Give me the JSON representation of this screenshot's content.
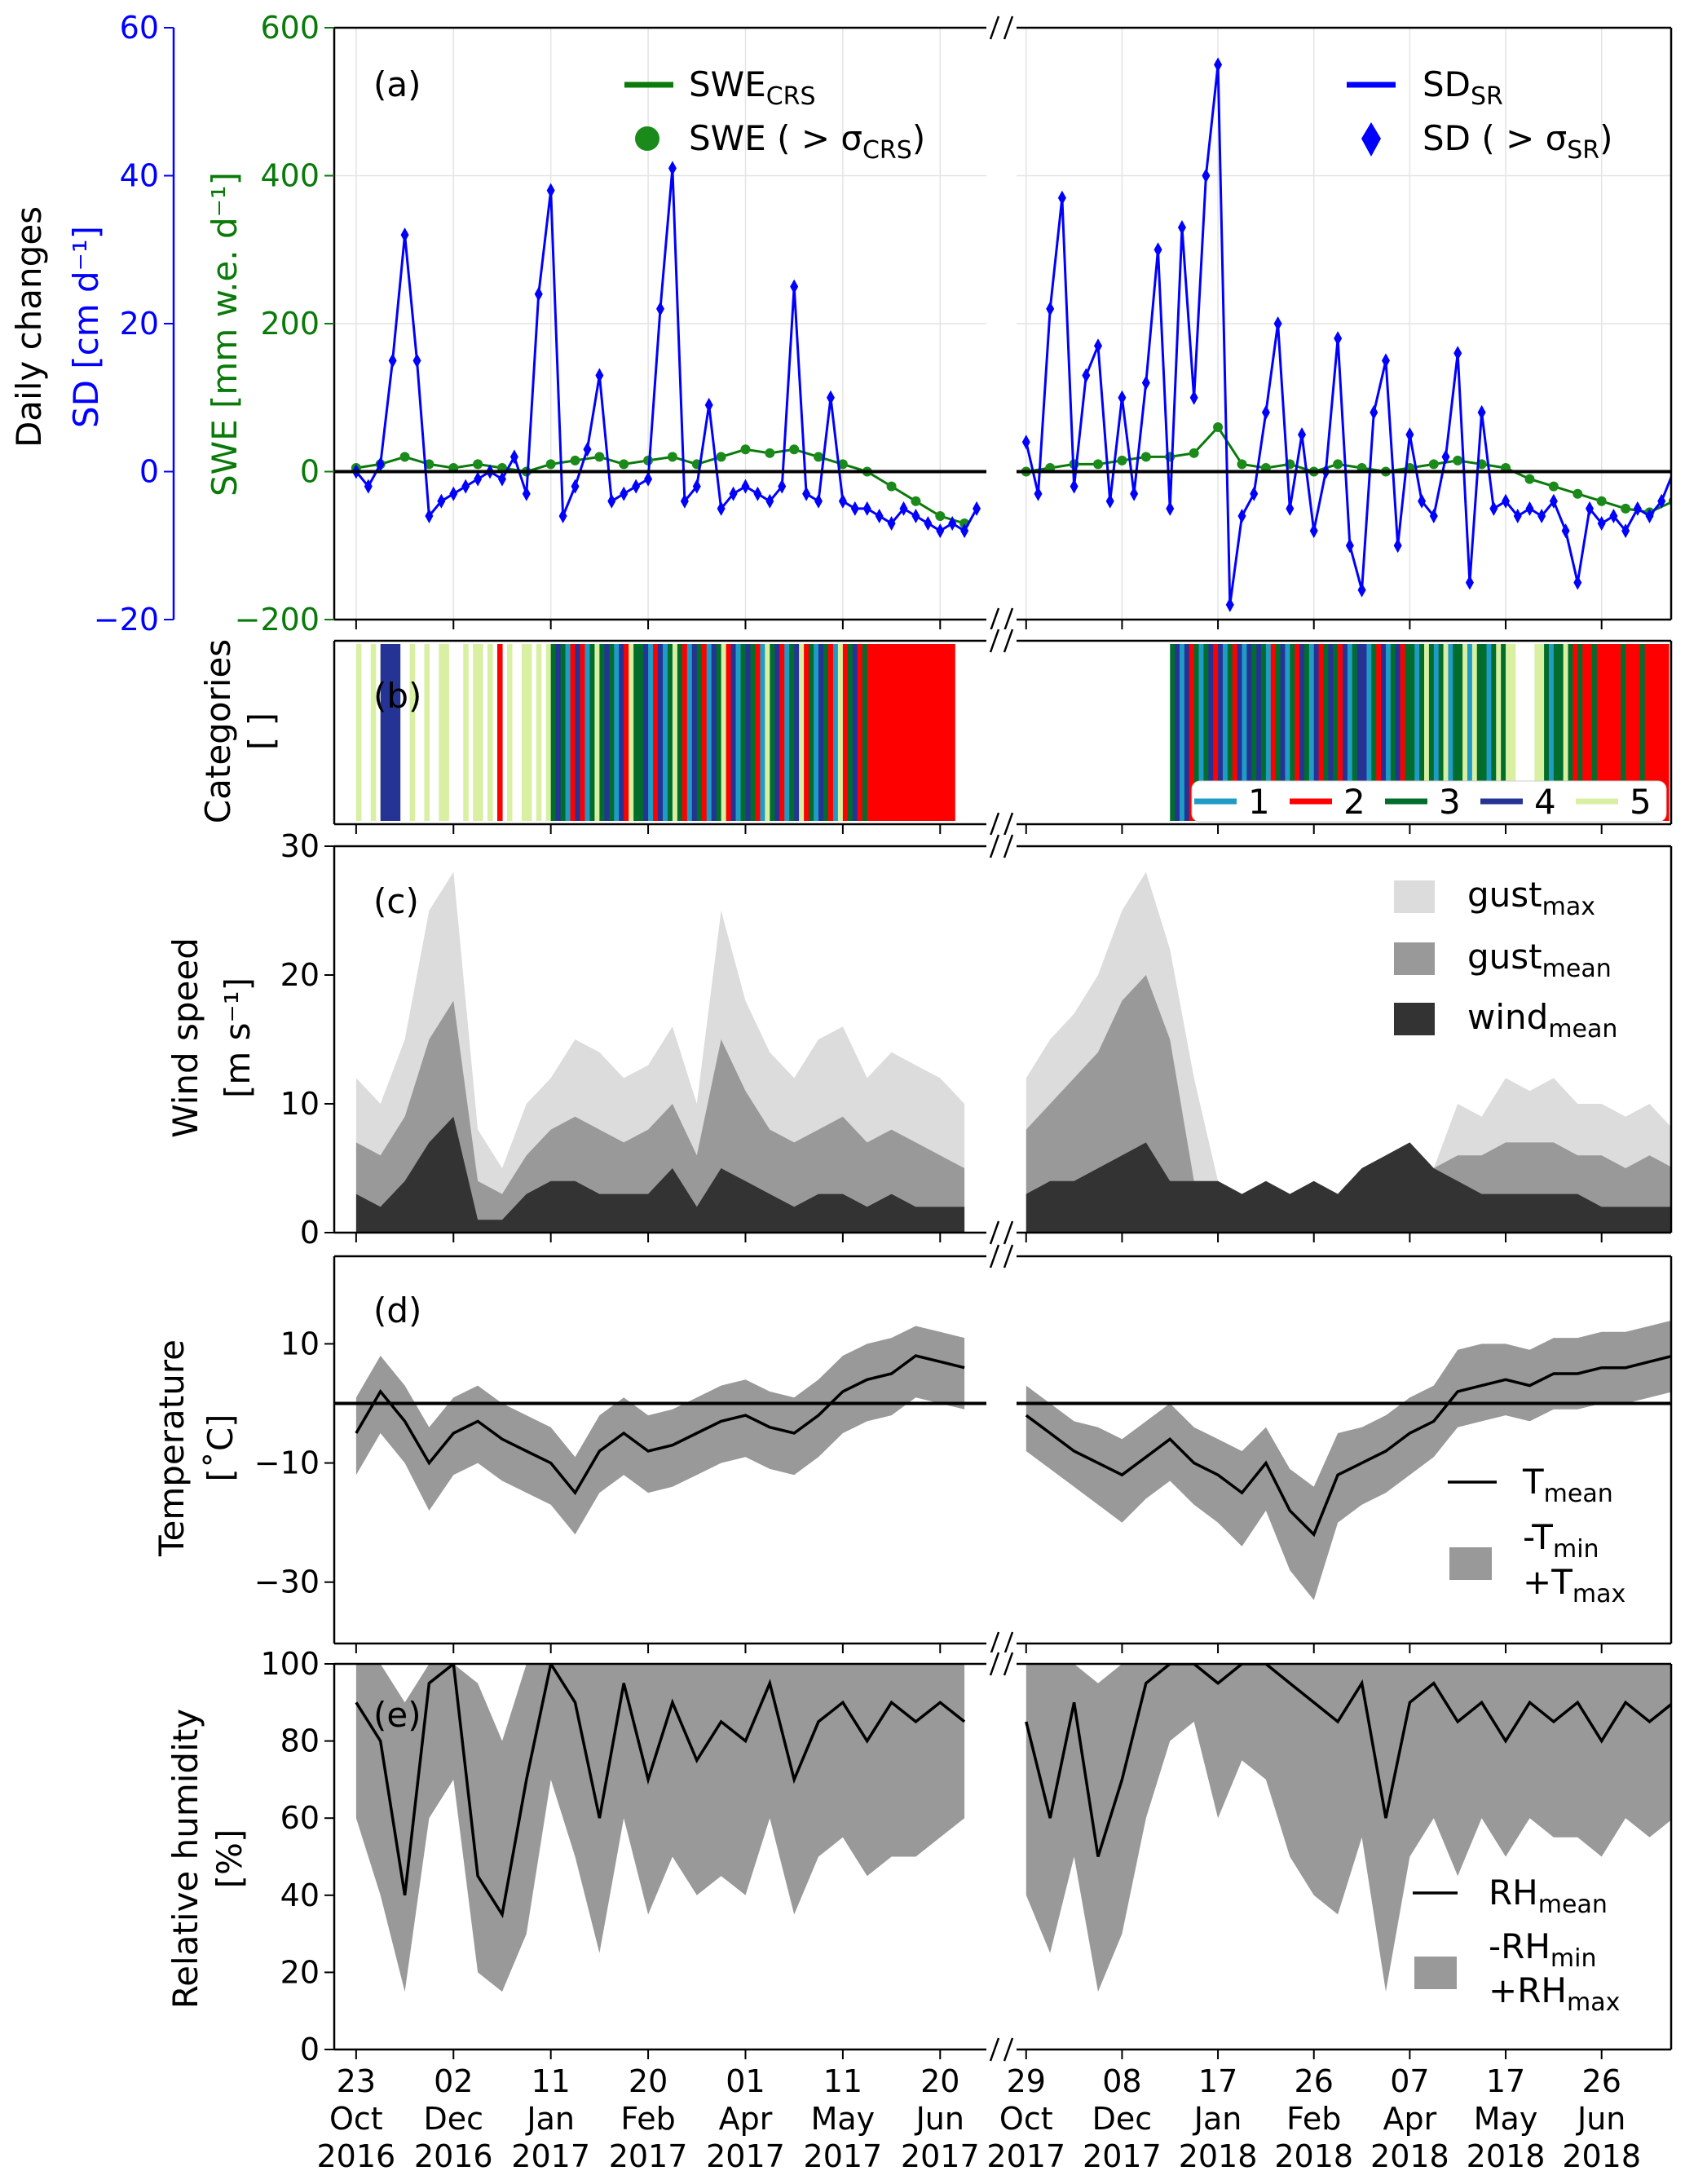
{
  "colors": {
    "sd": "#0000ff",
    "swe": "#1a8a1a",
    "swe_line": "#0a7a0a",
    "cat1": "#1f9bc6",
    "cat2": "#ff0000",
    "cat3": "#006d2c",
    "cat4": "#253494",
    "cat5": "#d9f0a3",
    "gust_max": "#dcdcdc",
    "gust_mean": "#999999",
    "wind_mean": "#333333",
    "band": "#999999"
  },
  "chart_data": {
    "type": "multi-panel time series",
    "x_range_days": [
      [
        -9,
        259
      ],
      [
        -4,
        269
      ]
    ],
    "x_ticks": [
      {
        "days": [
          0,
          40,
          80,
          120,
          160,
          200,
          240
        ],
        "labels": [
          [
            "23",
            "Oct",
            "2016"
          ],
          [
            "02",
            "Dec",
            "2016"
          ],
          [
            "11",
            "Jan",
            "2017"
          ],
          [
            "20",
            "Feb",
            "2017"
          ],
          [
            "01",
            "Apr",
            "2017"
          ],
          [
            "11",
            "May",
            "2017"
          ],
          [
            "20",
            "Jun",
            "2017"
          ]
        ]
      },
      {
        "days": [
          0,
          40,
          80,
          120,
          160,
          200,
          240
        ],
        "labels": [
          [
            "29",
            "Oct",
            "2017"
          ],
          [
            "08",
            "Dec",
            "2017"
          ],
          [
            "17",
            "Jan",
            "2018"
          ],
          [
            "26",
            "Feb",
            "2018"
          ],
          [
            "07",
            "Apr",
            "2018"
          ],
          [
            "17",
            "May",
            "2018"
          ],
          [
            "26",
            "Jun",
            "2018"
          ]
        ]
      }
    ],
    "panel_a": {
      "label": "(a)",
      "ylabel_outer": "Daily changes",
      "ylabel_sd": "SD [cm d⁻¹]",
      "ylabel_swe": "SWE [mm w.e. d⁻¹]",
      "sd_ticks": [
        {
          "v": 60,
          "t": "60"
        },
        {
          "v": 40,
          "t": "40"
        },
        {
          "v": 20,
          "t": "20"
        },
        {
          "v": 0,
          "t": "0"
        },
        {
          "v": -20,
          "t": "−20"
        }
      ],
      "swe_ticks": [
        {
          "v": 600,
          "t": "600"
        },
        {
          "v": 400,
          "t": "400"
        },
        {
          "v": 200,
          "t": "200"
        },
        {
          "v": 0,
          "t": "0"
        },
        {
          "v": -200,
          "t": "−200"
        }
      ],
      "swe_ylim": [
        -200,
        600
      ],
      "sd_ylim": [
        -20,
        60
      ],
      "legend": {
        "swe_line": {
          "main": "SWE",
          "sub": "CRS"
        },
        "swe_dot": {
          "main": "SWE ( > σ",
          "sub": "CRS",
          "end": ")"
        },
        "sd_line": {
          "main": "SD",
          "sub": "SR"
        },
        "sd_diamond": {
          "main": "SD ( > σ",
          "sub": "SR",
          "end": ")"
        }
      },
      "sd_step_days": 5,
      "sd": [
        [
          0,
          -2,
          1,
          15,
          32,
          15,
          -6,
          -4,
          -3,
          -2,
          -1,
          0,
          -1,
          2,
          -3,
          24,
          38,
          -6,
          -2,
          3,
          13,
          -4,
          -3,
          -2,
          -1,
          22,
          41,
          -4,
          -2,
          9,
          -5,
          -3,
          -2,
          -3,
          -4,
          -2,
          25,
          -3,
          -4,
          10,
          -4,
          -5,
          -5,
          -6,
          -7,
          -5,
          -6,
          -7,
          -8,
          -7,
          -8,
          -5
        ],
        [
          4,
          -3,
          22,
          37,
          -2,
          13,
          17,
          -4,
          10,
          -3,
          12,
          30,
          -5,
          33,
          10,
          40,
          55,
          -18,
          -6,
          -3,
          8,
          20,
          -5,
          5,
          -8,
          0,
          18,
          -10,
          -16,
          8,
          15,
          -10,
          5,
          -4,
          -6,
          2,
          16,
          -15,
          8,
          -5,
          -4,
          -6,
          -5,
          -6,
          -4,
          -8,
          -15,
          -5,
          -7,
          -6,
          -8,
          -5,
          -6,
          -4,
          0
        ]
      ],
      "swe_step_days": 10,
      "swe": [
        [
          5,
          10,
          20,
          10,
          5,
          10,
          5,
          0,
          10,
          15,
          20,
          10,
          15,
          20,
          10,
          20,
          30,
          25,
          30,
          20,
          10,
          0,
          -20,
          -40,
          -60,
          -70
        ],
        [
          0,
          5,
          10,
          10,
          15,
          20,
          20,
          25,
          60,
          10,
          5,
          10,
          0,
          10,
          5,
          0,
          5,
          10,
          15,
          10,
          5,
          -10,
          -20,
          -30,
          -40,
          -50,
          -55,
          -40
        ]
      ]
    },
    "panel_b": {
      "label": "(b)",
      "ylabel": "Categories",
      "yunit": "[ ]",
      "legend": [
        "1",
        "2",
        "3",
        "4",
        "5"
      ],
      "step_days": 2,
      "categories": [
        "50050444400500500550005055050205005505053431242135343142533412413532143214352413432153421345231432152342322222222222222222200",
        "0000000000000000000000000000003414231342413241434312341324314234324134413241342331353135133515331353550000553133532322322222322232222200000"
      ]
    },
    "panel_c": {
      "label": "(c)",
      "ylabel": "Wind speed",
      "yunit": "[m s⁻¹]",
      "ylim": [
        0,
        30
      ],
      "ticks": [
        {
          "v": 0,
          "t": "0"
        },
        {
          "v": 10,
          "t": "10"
        },
        {
          "v": 20,
          "t": "20"
        },
        {
          "v": 30,
          "t": "30"
        }
      ],
      "legend": {
        "gust_max": {
          "main": "gust",
          "sub": "max"
        },
        "gust_mean": {
          "main": "gust",
          "sub": "mean"
        },
        "wind_mean": {
          "main": "wind",
          "sub": "mean"
        }
      },
      "step_days": 10,
      "gust_max": [
        [
          12,
          10,
          15,
          25,
          28,
          8,
          5,
          10,
          12,
          15,
          14,
          12,
          13,
          16,
          10,
          25,
          18,
          14,
          12,
          15,
          16,
          12,
          14,
          13,
          12,
          10
        ],
        [
          12,
          15,
          17,
          20,
          25,
          28,
          22,
          12,
          4,
          3,
          4,
          3,
          4,
          3,
          5,
          6,
          7,
          5,
          10,
          9,
          12,
          11,
          12,
          10,
          10,
          9,
          10,
          8
        ]
      ],
      "gust_mean": [
        [
          7,
          6,
          9,
          15,
          18,
          4,
          3,
          6,
          8,
          9,
          8,
          7,
          8,
          10,
          6,
          15,
          11,
          8,
          7,
          8,
          9,
          7,
          8,
          7,
          6,
          5
        ],
        [
          8,
          10,
          12,
          14,
          18,
          20,
          15,
          4,
          4,
          3,
          4,
          3,
          4,
          3,
          5,
          6,
          7,
          5,
          6,
          6,
          7,
          7,
          7,
          6,
          6,
          5,
          6,
          5
        ]
      ],
      "wind_mean": [
        [
          3,
          2,
          4,
          7,
          9,
          1,
          1,
          3,
          4,
          4,
          3,
          3,
          3,
          5,
          2,
          5,
          4,
          3,
          2,
          3,
          3,
          2,
          3,
          2,
          2,
          2
        ],
        [
          3,
          4,
          4,
          5,
          6,
          7,
          4,
          4,
          4,
          3,
          4,
          3,
          4,
          3,
          5,
          6,
          7,
          5,
          4,
          3,
          3,
          3,
          3,
          3,
          2,
          2,
          2,
          2
        ]
      ]
    },
    "panel_d": {
      "label": "(d)",
      "ylabel": "Temperature",
      "yunit": "[˚C]",
      "ylim": [
        -40.3,
        24.7
      ],
      "ticks": [
        {
          "v": 10,
          "t": "10"
        },
        {
          "v": -10,
          "t": "−10"
        },
        {
          "v": -30,
          "t": "−30"
        }
      ],
      "legend": {
        "mean": {
          "main": "T",
          "sub": "mean"
        },
        "band1": {
          "main": "-T",
          "sub": "min"
        },
        "band2": {
          "main": "+T",
          "sub": "max"
        }
      },
      "step_days": 10,
      "t_mean": [
        [
          -5,
          2,
          -3,
          -10,
          -5,
          -3,
          -6,
          -8,
          -10,
          -15,
          -8,
          -5,
          -8,
          -7,
          -5,
          -3,
          -2,
          -4,
          -5,
          -2,
          2,
          4,
          5,
          8,
          7,
          6
        ],
        [
          -2,
          -5,
          -8,
          -10,
          -12,
          -9,
          -6,
          -10,
          -12,
          -15,
          -10,
          -18,
          -22,
          -12,
          -10,
          -8,
          -5,
          -3,
          2,
          3,
          4,
          3,
          5,
          5,
          6,
          6,
          7,
          8
        ]
      ],
      "t_max": [
        [
          1,
          8,
          3,
          -4,
          1,
          3,
          0,
          -2,
          -4,
          -9,
          -2,
          1,
          -2,
          -1,
          1,
          3,
          4,
          2,
          1,
          4,
          8,
          10,
          11,
          13,
          12,
          11
        ],
        [
          3,
          0,
          -3,
          -4,
          -6,
          -3,
          0,
          -4,
          -6,
          -8,
          -4,
          -11,
          -14,
          -5,
          -4,
          -2,
          1,
          3,
          9,
          10,
          10,
          9,
          11,
          11,
          12,
          12,
          13,
          14
        ]
      ],
      "t_min": [
        [
          -12,
          -5,
          -10,
          -18,
          -12,
          -10,
          -13,
          -15,
          -17,
          -22,
          -15,
          -12,
          -15,
          -14,
          -12,
          -10,
          -9,
          -11,
          -12,
          -9,
          -5,
          -3,
          -2,
          1,
          0,
          -1
        ],
        [
          -8,
          -11,
          -14,
          -17,
          -20,
          -16,
          -13,
          -17,
          -20,
          -24,
          -18,
          -28,
          -33,
          -20,
          -17,
          -15,
          -12,
          -9,
          -4,
          -3,
          -2,
          -3,
          -1,
          -1,
          0,
          0,
          1,
          2
        ]
      ]
    },
    "panel_e": {
      "label": "(e)",
      "ylabel": "Relative humidity",
      "yunit": "[%]",
      "ylim": [
        0,
        100
      ],
      "ticks": [
        {
          "v": 0,
          "t": "0"
        },
        {
          "v": 20,
          "t": "20"
        },
        {
          "v": 40,
          "t": "40"
        },
        {
          "v": 60,
          "t": "60"
        },
        {
          "v": 80,
          "t": "80"
        },
        {
          "v": 100,
          "t": "100"
        }
      ],
      "legend": {
        "mean": {
          "main": "RH",
          "sub": "mean"
        },
        "band1": {
          "main": "-RH",
          "sub": "min"
        },
        "band2": {
          "main": "+RH",
          "sub": "max"
        }
      },
      "step_days": 10,
      "rh_mean": [
        [
          90,
          80,
          40,
          95,
          100,
          45,
          35,
          70,
          100,
          90,
          60,
          95,
          70,
          90,
          75,
          85,
          80,
          95,
          70,
          85,
          90,
          80,
          90,
          85,
          90,
          85
        ],
        [
          85,
          60,
          90,
          50,
          70,
          95,
          100,
          100,
          95,
          100,
          100,
          95,
          90,
          85,
          95,
          60,
          90,
          95,
          85,
          90,
          80,
          90,
          85,
          90,
          80,
          90,
          85,
          90
        ]
      ],
      "rh_min": [
        [
          60,
          40,
          15,
          60,
          70,
          20,
          15,
          30,
          70,
          50,
          25,
          60,
          35,
          50,
          40,
          45,
          40,
          60,
          35,
          50,
          55,
          45,
          50,
          50,
          55,
          60
        ],
        [
          40,
          25,
          50,
          15,
          30,
          60,
          80,
          85,
          60,
          75,
          70,
          50,
          40,
          35,
          55,
          15,
          50,
          60,
          45,
          60,
          50,
          60,
          55,
          55,
          50,
          60,
          55,
          60
        ]
      ],
      "rh_max": [
        [
          100,
          100,
          90,
          100,
          100,
          95,
          80,
          100,
          100,
          100,
          100,
          100,
          100,
          100,
          100,
          100,
          100,
          100,
          100,
          100,
          100,
          100,
          100,
          100,
          100,
          100
        ],
        [
          100,
          100,
          100,
          95,
          100,
          100,
          100,
          100,
          100,
          100,
          100,
          100,
          100,
          100,
          100,
          100,
          100,
          100,
          100,
          100,
          100,
          100,
          100,
          100,
          100,
          100,
          100,
          100
        ]
      ]
    }
  }
}
